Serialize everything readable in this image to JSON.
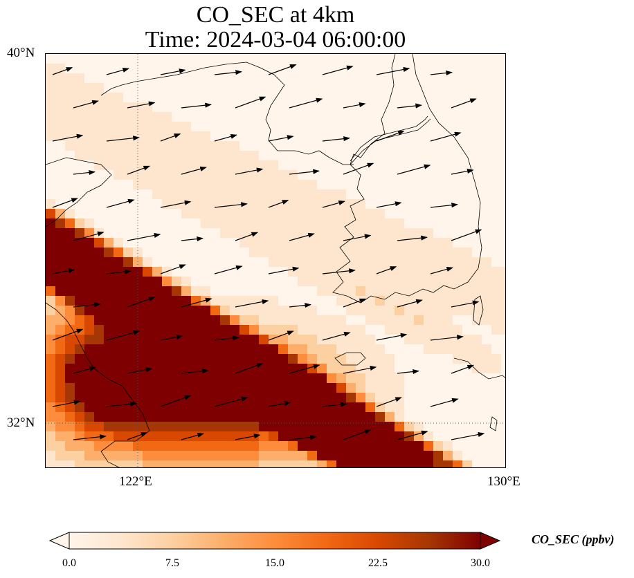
{
  "title": {
    "line1": "CO_SEC at 4km",
    "line2": "Time: 2024-03-04 06:00:00"
  },
  "map": {
    "lat_range": [
      31,
      40
    ],
    "lon_range": [
      120,
      130
    ],
    "y_ticks": [
      {
        "value": 40,
        "label": "40°N"
      },
      {
        "value": 32,
        "label": "32°N"
      }
    ],
    "x_ticks": [
      {
        "value": 122,
        "label": "122°E"
      },
      {
        "value": 130,
        "label": "130°E"
      }
    ],
    "gridlines": {
      "lons": [
        122
      ],
      "lats": [
        32
      ],
      "style": "dotted"
    },
    "wind_vectors": "arrows pointing east to east-north-east"
  },
  "colorbar": {
    "label": "CO_SEC (ppbv)",
    "tick_labels": [
      "0.0",
      "7.5",
      "15.0",
      "22.5",
      "30.0"
    ],
    "vmin": 0,
    "vmax": 30,
    "extend": "both",
    "colormap": [
      "#fff5eb",
      "#fee6ce",
      "#fdd0a2",
      "#fdae6b",
      "#fd8d3c",
      "#f16913",
      "#d94801",
      "#a63603",
      "#7f0000"
    ]
  }
}
